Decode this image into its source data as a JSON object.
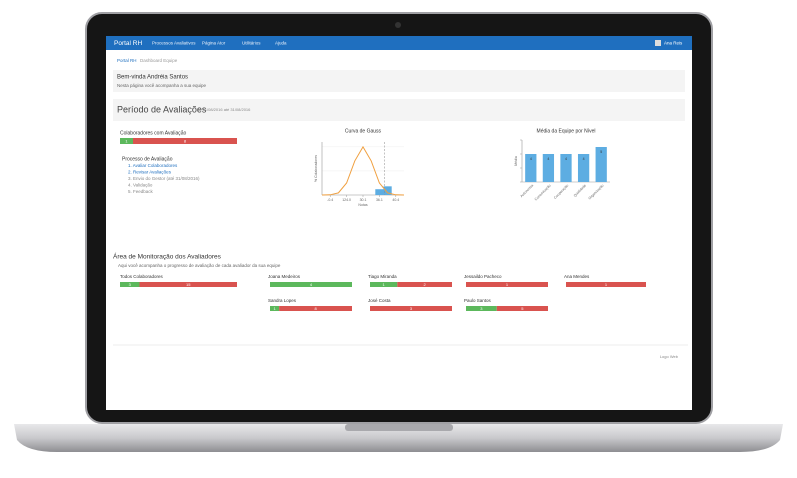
{
  "navbar": {
    "brand": "Portal RH",
    "items": [
      "Processos Avaliativos",
      "Página Ator",
      "Utilitários",
      "Ajuda"
    ],
    "user": "Ana Reis"
  },
  "breadcrumb": [
    "Portal RH",
    "Dashboard Equipe"
  ],
  "welcome": {
    "title": "Bem-vinda Andréia Santos",
    "subtitle": "Nesta página você acompanha a sua equipe"
  },
  "period": {
    "title": "Período de Avaliações",
    "range": "de 01/08/2016 até 31/08/2016"
  },
  "summary": {
    "label": "Colaboradores com Avaliação",
    "done": 1,
    "pending": 8
  },
  "process": {
    "title": "Processo de Avaliação",
    "steps": [
      "1. Avaliar Colaboradores",
      "2. Revisar Avaliações",
      "3. Envio do Gestor (até 31/08/2016)",
      "4. Validação",
      "5. Feedback"
    ]
  },
  "gauss_chart": {
    "type": "line",
    "title": "Curva de Gauss",
    "x_label": "Notas",
    "y_label": "% Colaboradores",
    "x": [
      0,
      0.5,
      1,
      1.5,
      2,
      2.5,
      3,
      3.5,
      4,
      4.5,
      5
    ],
    "series": [
      {
        "name": "Curva",
        "color": "#f0a040",
        "values": [
          0,
          0.4,
          4.4,
          24.9,
          70.7,
          100,
          70.7,
          24.9,
          4.4,
          0.4,
          0
        ]
      }
    ],
    "bars": {
      "color": "#5dade2",
      "x": [
        3.5,
        4
      ],
      "values": [
        12,
        18
      ]
    },
    "xlim": [
      0,
      5
    ],
    "ylim": [
      0,
      110
    ],
    "xticks": [
      {
        "value": 0.5,
        "label": "-0.4"
      },
      {
        "value": 1.5,
        "label": "124.0"
      },
      {
        "value": 2.5,
        "label": "30.1"
      },
      {
        "value": 3.5,
        "label": "36.1"
      },
      {
        "value": 4.5,
        "label": "40.4"
      }
    ],
    "yticks": [
      0,
      50,
      100
    ]
  },
  "team_chart": {
    "type": "bar",
    "title": "Média da Equipe por Nível",
    "y_label": "Média",
    "color": "#5dade2",
    "categories": [
      "Autonomia",
      "Comunicação",
      "Cooperação",
      "Qualidade",
      "Organização"
    ],
    "values": [
      4,
      4,
      4,
      4,
      5
    ],
    "ylim": [
      0,
      6
    ],
    "yticks": [
      0,
      2,
      4,
      6
    ]
  },
  "monitor": {
    "title": "Área de Monitoração dos Avaliadores",
    "subtitle": "Aqui você acompanha o progresso de avaliação de cada avaliador da sua equipe",
    "evaluators": [
      {
        "name": "Todos Colaboradores",
        "done": 3,
        "pending": 15
      },
      {
        "name": "Joana Medeiros",
        "done": 4,
        "pending": 0
      },
      {
        "name": "Tiago Miranda",
        "done": 1,
        "pending": 2
      },
      {
        "name": "Jessaildo Pacheco",
        "done": 0,
        "pending": 1
      },
      {
        "name": "Ana Mendes",
        "done": 0,
        "pending": 1
      },
      {
        "name": "Sandra Lopes",
        "done": 1,
        "pending": 8
      },
      {
        "name": "José Costa",
        "done": 0,
        "pending": 3
      },
      {
        "name": "Paulo Santos",
        "done": 3,
        "pending": 5
      }
    ]
  },
  "footer": "Logo Web"
}
